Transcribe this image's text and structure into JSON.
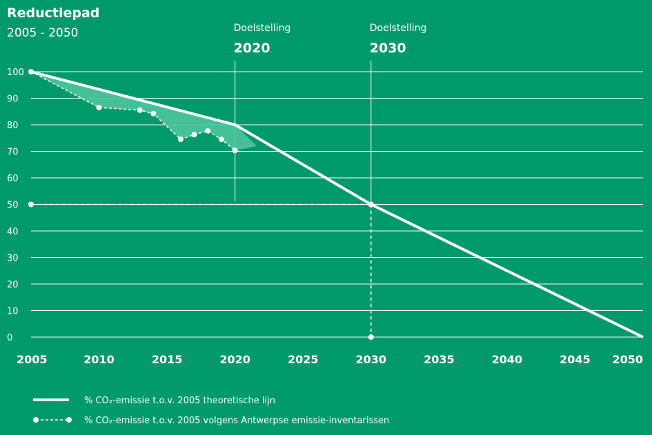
{
  "chart_data": {
    "type": "line",
    "title": "Reductiepad",
    "subtitle": "2005 - 2050",
    "xlim": [
      2005,
      2050
    ],
    "ylim": [
      0,
      100
    ],
    "x_ticks": [
      "2005",
      "2010",
      "2015",
      "2020",
      "2025",
      "2030",
      "2035",
      "2040",
      "2045",
      "2050"
    ],
    "y_ticks": [
      "0",
      "10",
      "20",
      "30",
      "40",
      "50",
      "60",
      "70",
      "80",
      "90",
      "100"
    ],
    "grid": true,
    "annotations": [
      {
        "label": "Doelstelling",
        "year_label": "2020",
        "x": 2020
      },
      {
        "label": "Doelstelling",
        "year_label": "2030",
        "x": 2030
      }
    ],
    "series": [
      {
        "name": "% CO₂-emissie t.o.v. 2005 theoretische lijn",
        "style": "solid",
        "x": [
          2005,
          2020,
          2030,
          2050
        ],
        "y": [
          100,
          80,
          50,
          0
        ]
      },
      {
        "name": "% CO₂-emissie t.o.v. 2005 volgens Antwerpse emissie-inventarissen",
        "style": "dashed-markers",
        "x": [
          2005,
          2010,
          2013,
          2014,
          2016,
          2017,
          2018,
          2019,
          2020
        ],
        "y": [
          100,
          86.5,
          85.5,
          84.2,
          74.5,
          76.3,
          77.7,
          74.5,
          70.3
        ]
      }
    ],
    "target_guides": {
      "x": 2030,
      "y": 50
    }
  },
  "colors": {
    "background": "#00996b",
    "foreground": "#ffffff",
    "gap_fill": "#4ec49c"
  }
}
